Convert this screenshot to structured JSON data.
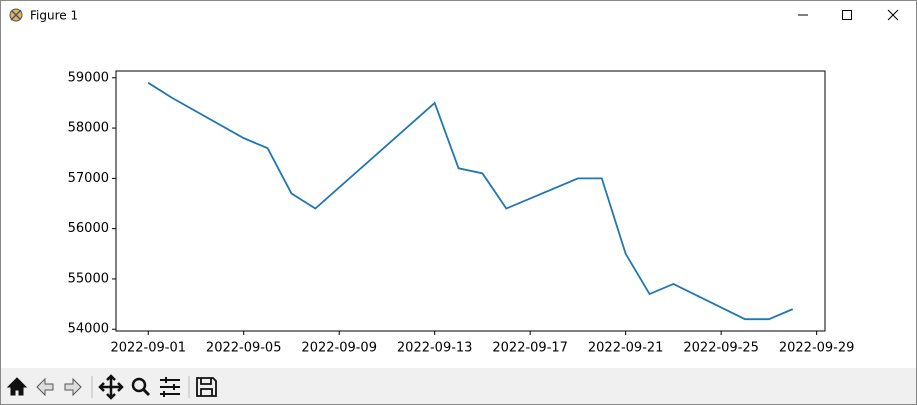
{
  "window": {
    "title": "Figure 1"
  },
  "chart_data": {
    "type": "line",
    "x": [
      "2022-09-01",
      "2022-09-02",
      "2022-09-05",
      "2022-09-06",
      "2022-09-07",
      "2022-09-08",
      "2022-09-13",
      "2022-09-14",
      "2022-09-15",
      "2022-09-16",
      "2022-09-19",
      "2022-09-20",
      "2022-09-21",
      "2022-09-22",
      "2022-09-23",
      "2022-09-26",
      "2022-09-27",
      "2022-09-28"
    ],
    "values": [
      58900,
      58600,
      57800,
      57600,
      56700,
      56400,
      58500,
      57200,
      57100,
      56400,
      57000,
      57000,
      55500,
      54700,
      54900,
      54200,
      54200,
      54400
    ],
    "color": "#1f77b4",
    "xlim": [
      "2022-08-30T15:36",
      "2022-09-29T08:24"
    ],
    "xticks": [
      "2022-09-01",
      "2022-09-05",
      "2022-09-09",
      "2022-09-13",
      "2022-09-17",
      "2022-09-21",
      "2022-09-25",
      "2022-09-29"
    ],
    "ylim": [
      53965,
      59135
    ],
    "yticks": [
      54000,
      55000,
      56000,
      57000,
      58000,
      59000
    ],
    "grid": false
  }
}
